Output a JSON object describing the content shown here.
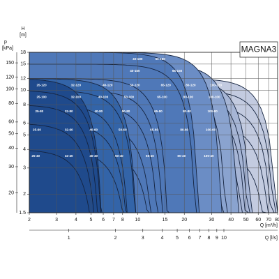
{
  "chart_data": {
    "type": "pump-range",
    "title": "MAGNA3",
    "y_label": "H",
    "y_unit": "[m]",
    "y2_label": "p",
    "y2_unit": "[kPa]",
    "x_label": "Q [m³/h]",
    "x2_label": "Q [l/s]",
    "log_x": true,
    "log_y": true,
    "grid": true,
    "xlim": [
      2,
      80
    ],
    "xticks": [
      2,
      3,
      4,
      5,
      6,
      7,
      8,
      10,
      15,
      20,
      30,
      40,
      50,
      60,
      70,
      80
    ],
    "x2lim": [
      0.556,
      22.2
    ],
    "x2ticks": [
      1,
      2,
      3,
      4,
      5,
      6,
      7,
      8,
      9,
      10
    ],
    "ylim": [
      1.5,
      18
    ],
    "yticks": [
      1.5,
      2,
      3,
      4,
      5,
      6,
      8,
      10,
      12,
      15,
      18
    ],
    "y2lim": [
      14.7,
      176.6
    ],
    "y2ticks": [
      20,
      30,
      40,
      50,
      60,
      80,
      100,
      120,
      150
    ],
    "models": [
      {
        "name": "100-120",
        "hmax": 12,
        "qmax": 80,
        "color": "#c3cbe0"
      },
      {
        "name": "100-100",
        "hmax": 10,
        "qmax": 78,
        "color": "#c3cbe0"
      },
      {
        "name": "100-80",
        "hmax": 8,
        "qmax": 76,
        "color": "#c3cbe0"
      },
      {
        "name": "100-60",
        "hmax": 6,
        "qmax": 74,
        "color": "#c3cbe0"
      },
      {
        "name": "100-40",
        "hmax": 4,
        "qmax": 72,
        "color": "#c3cbe0"
      },
      {
        "name": "80-120",
        "hmax": 12,
        "qmax": 55,
        "color": "#a6b5d5"
      },
      {
        "name": "80-100",
        "hmax": 10,
        "qmax": 53,
        "color": "#a6b5d5"
      },
      {
        "name": "80-80",
        "hmax": 8,
        "qmax": 52,
        "color": "#a6b5d5"
      },
      {
        "name": "80-60",
        "hmax": 6,
        "qmax": 50,
        "color": "#a6b5d5"
      },
      {
        "name": "80-40",
        "hmax": 4,
        "qmax": 48,
        "color": "#a6b5d5"
      },
      {
        "name": "65-150",
        "hmax": 15,
        "qmax": 45,
        "color": "#8aa3cf"
      },
      {
        "name": "65-120",
        "hmax": 12,
        "qmax": 38,
        "color": "#8aa3cf"
      },
      {
        "name": "65-100",
        "hmax": 10,
        "qmax": 36,
        "color": "#8aa3cf"
      },
      {
        "name": "65-80",
        "hmax": 8,
        "qmax": 34,
        "color": "#8aa3cf"
      },
      {
        "name": "65-60",
        "hmax": 6,
        "qmax": 32,
        "color": "#8aa3cf"
      },
      {
        "name": "65-40",
        "hmax": 4,
        "qmax": 30,
        "color": "#8aa3cf"
      },
      {
        "name": "50-180",
        "hmax": 18,
        "qmax": 35,
        "color": "#6b8dc5"
      },
      {
        "name": "50-120",
        "hmax": 12,
        "qmax": 24,
        "color": "#6b8dc5"
      },
      {
        "name": "50-100",
        "hmax": 10,
        "qmax": 22,
        "color": "#6b8dc5"
      },
      {
        "name": "50-80",
        "hmax": 8,
        "qmax": 21,
        "color": "#6b8dc5"
      },
      {
        "name": "50-60",
        "hmax": 6,
        "qmax": 20,
        "color": "#6b8dc5"
      },
      {
        "name": "50-40",
        "hmax": 4,
        "qmax": 19,
        "color": "#6b8dc5"
      },
      {
        "name": "40-180",
        "hmax": 18,
        "qmax": 25,
        "color": "#4f78b8"
      },
      {
        "name": "40-150",
        "hmax": 15,
        "qmax": 24,
        "color": "#4f78b8"
      },
      {
        "name": "40-120",
        "hmax": 12,
        "qmax": 16,
        "color": "#4f78b8"
      },
      {
        "name": "40-100",
        "hmax": 10,
        "qmax": 15,
        "color": "#4f78b8"
      },
      {
        "name": "40-80",
        "hmax": 8,
        "qmax": 14,
        "color": "#4f78b8"
      },
      {
        "name": "40-60",
        "hmax": 6,
        "qmax": 13,
        "color": "#4f78b8"
      },
      {
        "name": "40-40",
        "hmax": 4,
        "qmax": 13,
        "color": "#4f78b8"
      },
      {
        "name": "32-120",
        "hmax": 12,
        "qmax": 10,
        "color": "#3364a8"
      },
      {
        "name": "32-100",
        "hmax": 10,
        "qmax": 10,
        "color": "#3364a8"
      },
      {
        "name": "32-80",
        "hmax": 8,
        "qmax": 9,
        "color": "#3364a8"
      },
      {
        "name": "32-60",
        "hmax": 6,
        "qmax": 9,
        "color": "#3364a8"
      },
      {
        "name": "32-40",
        "hmax": 4,
        "qmax": 9,
        "color": "#3364a8"
      },
      {
        "name": "25-120",
        "hmax": 12,
        "qmax": 6,
        "color": "#1f4a8c"
      },
      {
        "name": "25-100",
        "hmax": 10,
        "qmax": 6,
        "color": "#1f4a8c"
      },
      {
        "name": "25-80",
        "hmax": 8,
        "qmax": 5.8,
        "color": "#1f4a8c"
      },
      {
        "name": "25-60",
        "hmax": 6,
        "qmax": 5.6,
        "color": "#1f4a8c"
      },
      {
        "name": "25-40",
        "hmax": 4,
        "qmax": 5.5,
        "color": "#1f4a8c"
      }
    ]
  }
}
